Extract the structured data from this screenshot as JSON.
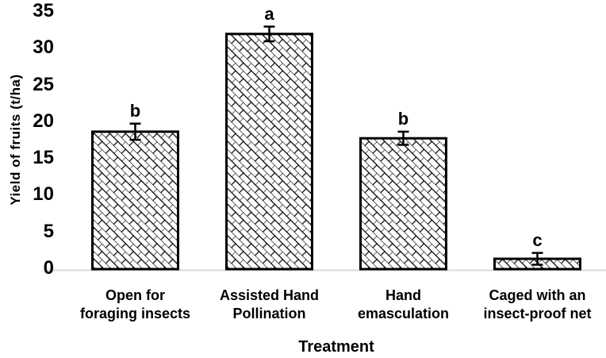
{
  "chart_data": {
    "type": "bar",
    "title": "",
    "xlabel": "Treatment",
    "ylabel": "Yield of fruits (t/ha)",
    "ylim": [
      0,
      35
    ],
    "yticks": [
      0,
      5,
      10,
      15,
      20,
      25,
      30,
      35
    ],
    "ytick_labels": [
      "0",
      "5",
      "10",
      "15",
      "20",
      "25",
      "30",
      "35"
    ],
    "categories": [
      "Open for foraging insects",
      "Assisted Hand Pollination",
      "Hand emasculation",
      "Caged with an insect-proof net"
    ],
    "categories_lines": [
      [
        "Open for",
        "foraging insects"
      ],
      [
        "Assisted Hand",
        "Pollination"
      ],
      [
        "Hand",
        "emasculation"
      ],
      [
        "Caged with an",
        "insect-proof net"
      ]
    ],
    "values": [
      18.7,
      32.0,
      17.8,
      1.4
    ],
    "errors": [
      1.1,
      1.0,
      0.9,
      0.8
    ],
    "significance_letters": [
      "b",
      "a",
      "b",
      "c"
    ],
    "grid": false,
    "legend": "none",
    "bar_fill": "diagonal-brick-crosshatch",
    "bar_border_color": "#000000",
    "axis_line_color": "#d9d9d9",
    "text_color": "#000000",
    "background_color": "#ffffff"
  }
}
